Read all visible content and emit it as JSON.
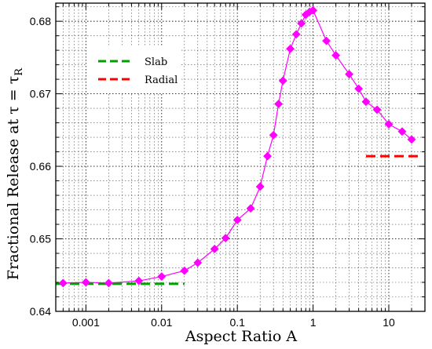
{
  "chart_data": {
    "type": "line",
    "xlabel": "Aspect Ratio  A",
    "ylabel_main": "Fractional Release at  τ = τ",
    "ylabel_sub": "R",
    "xscale": "log",
    "xlim": [
      0.0004,
      30
    ],
    "ylim": [
      0.64,
      0.6825
    ],
    "xticks": [
      0.001,
      0.01,
      0.1,
      1,
      10
    ],
    "xtick_labels": [
      "0.001",
      "0.01",
      "0.1",
      "1",
      "10"
    ],
    "yticks": [
      0.64,
      0.65,
      0.66,
      0.67,
      0.68
    ],
    "ytick_labels": [
      "0.64",
      "0.65",
      "0.66",
      "0.67",
      "0.68"
    ],
    "grid": true,
    "legend_position": "upper-left",
    "series": [
      {
        "name": "",
        "color": "#ff00ff",
        "marker": "diamond",
        "x": [
          0.0005,
          0.001,
          0.002,
          0.005,
          0.01,
          0.02,
          0.03,
          0.05,
          0.07,
          0.1,
          0.15,
          0.2,
          0.25,
          0.3,
          0.35,
          0.4,
          0.5,
          0.6,
          0.7,
          0.8,
          0.9,
          1.0,
          1.5,
          2.0,
          3.0,
          4.0,
          5.0,
          7.0,
          10.0,
          15.0,
          20.0
        ],
        "y": [
          0.6439,
          0.644,
          0.6439,
          0.6442,
          0.6448,
          0.6456,
          0.6467,
          0.6486,
          0.6501,
          0.6526,
          0.6542,
          0.6572,
          0.6614,
          0.6643,
          0.6686,
          0.6718,
          0.6762,
          0.6782,
          0.6797,
          0.6809,
          0.6813,
          0.6815,
          0.6773,
          0.6753,
          0.6727,
          0.6707,
          0.6689,
          0.6678,
          0.6658,
          0.6648,
          0.6637
        ]
      },
      {
        "name": "Slab",
        "color": "#00a000",
        "dash": true,
        "x": [
          0.0004,
          0.02
        ],
        "y": [
          0.6438,
          0.6438
        ]
      },
      {
        "name": "Radial",
        "color": "#ff0000",
        "dash": true,
        "x": [
          5,
          25
        ],
        "y": [
          0.6614,
          0.6614
        ]
      }
    ],
    "legend": [
      {
        "label": "Slab",
        "color": "#00a000"
      },
      {
        "label": "Radial",
        "color": "#ff0000"
      }
    ]
  }
}
